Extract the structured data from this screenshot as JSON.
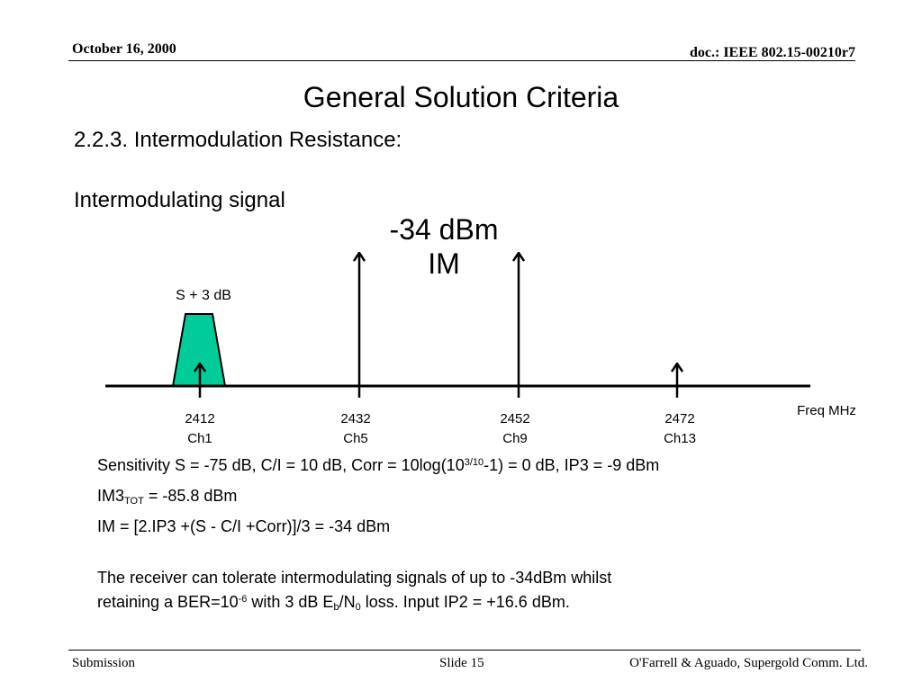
{
  "header": {
    "date": "October 16, 2000",
    "doc_id": "doc.: IEEE 802.15-00210r7"
  },
  "title": "General Solution Criteria",
  "subtitle": "2.2.3. Intermodulation Resistance:",
  "diagram": {
    "im_signal_label": "Intermodulating signal",
    "im_level": "-34 dBm",
    "im_tag": "IM",
    "wanted_signal_label": "S + 3 dB",
    "axis_label": "Freq MHz",
    "channels": [
      {
        "freq": "2412",
        "ch": "Ch1"
      },
      {
        "freq": "2432",
        "ch": "Ch5"
      },
      {
        "freq": "2452",
        "ch": "Ch9"
      },
      {
        "freq": "2472",
        "ch": "Ch13"
      }
    ],
    "colors": {
      "wanted_fill": "#00cc99",
      "line": "#000000"
    }
  },
  "body": {
    "line1_a": "Sensitivity S = -75 dB, C/I = 10 dB, Corr = 10log(10",
    "line1_sup": "3/10",
    "line1_b": "-1) = 0 dB, IP3 = -9 dBm",
    "line2_a": "IM3",
    "line2_sub": "TOT",
    "line2_b": " = -85.8 dBm",
    "line3": "IM = [2.IP3 +(S - C/I +Corr)]/3 = -34 dBm",
    "para1": "The receiver can tolerate intermodulating signals of up to -34dBm whilst",
    "para2_a": "retaining a BER=10",
    "para2_sup": "-6",
    "para2_b": " with 3 dB E",
    "para2_sub1": "b",
    "para2_c": "/N",
    "para2_sub2": "0",
    "para2_d": " loss. Input IP2 = +16.6 dBm."
  },
  "footer": {
    "left": "Submission",
    "slide": "Slide 15",
    "right": "O'Farrell & Aguado, Supergold Comm. Ltd."
  }
}
